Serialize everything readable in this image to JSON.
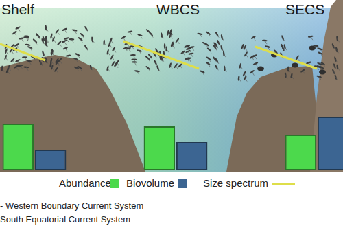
{
  "chart_data": {
    "type": "bar",
    "categories": [
      "Shelf",
      "WBCS",
      "SECS"
    ],
    "series": [
      {
        "name": "Abundance",
        "color": "#4cd94c",
        "values": [
          68,
          64,
          52
        ]
      },
      {
        "name": "Biovolume",
        "color": "#3c6592",
        "values": [
          30,
          41,
          78
        ]
      }
    ],
    "size_spectrum": {
      "name": "Size spectrum",
      "color": "#dede4a"
    },
    "notes": [
      "- Western Boundary Current System",
      "South Equatorial Current System"
    ],
    "ylim": [
      0,
      100
    ],
    "grid": false,
    "tick_labels": false
  }
}
